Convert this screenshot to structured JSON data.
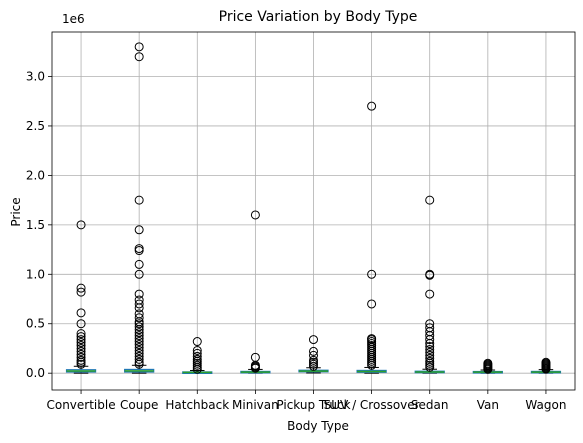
{
  "chart_data": {
    "type": "box",
    "title": "Price Variation by Body Type",
    "xlabel": "Body Type",
    "ylabel": "Price",
    "y_offset_label": "1e6",
    "ylim": [
      -170000,
      3450000
    ],
    "yticks": [
      0.0,
      0.5,
      1.0,
      1.5,
      2.0,
      2.5,
      3.0
    ],
    "ytick_labels": [
      "0.0",
      "0.5",
      "1.0",
      "1.5",
      "2.0",
      "2.5",
      "3.0"
    ],
    "grid": true,
    "categories": [
      "Convertible",
      "Coupe",
      "Hatchback",
      "Minivan",
      "Pickup Truck",
      "SUV / Crossover",
      "Sedan",
      "Van",
      "Wagon"
    ],
    "boxes": [
      {
        "q1": 12000,
        "median": 22000,
        "q3": 35000,
        "whisker_low": 0,
        "whisker_high": 70000,
        "outliers": [
          1500000,
          860000,
          820000,
          610000,
          500000,
          400000,
          370000,
          340000,
          310000,
          280000,
          250000,
          220000,
          190000,
          160000,
          130000,
          110000,
          90000
        ]
      },
      {
        "q1": 12000,
        "median": 24000,
        "q3": 38000,
        "whisker_low": 0,
        "whisker_high": 80000,
        "outliers": [
          3300000,
          3200000,
          1750000,
          1450000,
          1260000,
          1240000,
          1100000,
          1000000,
          800000,
          740000,
          700000,
          660000,
          600000,
          560000,
          520000,
          500000,
          470000,
          440000,
          410000,
          380000,
          350000,
          320000,
          290000,
          260000,
          230000,
          200000,
          170000,
          140000,
          110000,
          90000
        ]
      },
      {
        "q1": 4000,
        "median": 8000,
        "q3": 13000,
        "whisker_low": 0,
        "whisker_high": 27000,
        "outliers": [
          320000,
          230000,
          200000,
          170000,
          140000,
          120000,
          100000,
          80000,
          60000,
          40000
        ]
      },
      {
        "q1": 6000,
        "median": 11000,
        "q3": 18000,
        "whisker_low": 0,
        "whisker_high": 38000,
        "outliers": [
          1600000,
          160000,
          80000,
          70000,
          60000,
          50000
        ]
      },
      {
        "q1": 14000,
        "median": 21000,
        "q3": 30000,
        "whisker_low": 2000,
        "whisker_high": 55000,
        "outliers": [
          340000,
          220000,
          180000,
          130000,
          110000,
          90000,
          70000
        ]
      },
      {
        "q1": 9000,
        "median": 17000,
        "q3": 28000,
        "whisker_low": 0,
        "whisker_high": 58000,
        "outliers": [
          2700000,
          1000000,
          700000,
          350000,
          340000,
          320000,
          300000,
          280000,
          260000,
          240000,
          220000,
          200000,
          180000,
          160000,
          140000,
          120000,
          100000,
          80000
        ]
      },
      {
        "q1": 6000,
        "median": 12000,
        "q3": 20000,
        "whisker_low": 0,
        "whisker_high": 40000,
        "outliers": [
          1750000,
          1000000,
          990000,
          800000,
          500000,
          460000,
          420000,
          380000,
          340000,
          300000,
          270000,
          240000,
          210000,
          180000,
          150000,
          120000,
          100000,
          80000,
          60000
        ]
      },
      {
        "q1": 6000,
        "median": 11000,
        "q3": 17000,
        "whisker_low": 0,
        "whisker_high": 32000,
        "outliers": [
          100000,
          90000,
          80000,
          70000,
          60000,
          50000,
          40000
        ]
      },
      {
        "q1": 6000,
        "median": 11000,
        "q3": 18000,
        "whisker_low": 0,
        "whisker_high": 36000,
        "outliers": [
          110000,
          100000,
          90000,
          80000,
          70000,
          60000,
          50000,
          42000
        ]
      }
    ],
    "colors": {
      "box": "#1f77b4",
      "median": "#2ca02c",
      "grid": "#b0b0b0",
      "outlier": "#000000"
    }
  }
}
